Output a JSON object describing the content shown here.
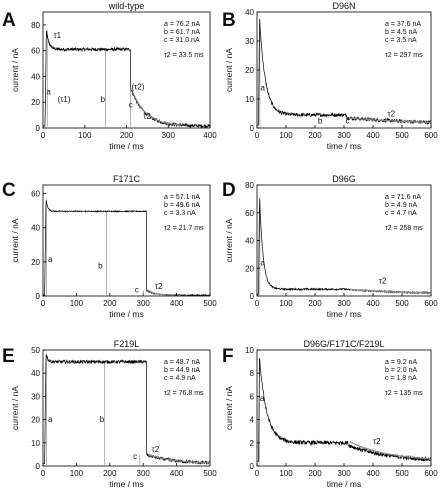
{
  "chart_data": [
    {
      "type": "line",
      "panel_label": "A",
      "title": "wild-type",
      "xlabel": "time / ms",
      "ylabel": "current / nA",
      "xlim": [
        0,
        400
      ],
      "ylim": [
        0,
        90
      ],
      "x_ticks": [
        0,
        100,
        200,
        300,
        400
      ],
      "y_ticks": [
        0,
        20,
        40,
        60,
        80
      ],
      "params": [
        "a = 76.2 nA",
        "b = 61.7 nA",
        "c = 31.0 nA",
        "τ2 = 33.5 ms"
      ],
      "markers": [
        {
          "text": "τ1",
          "x": 25,
          "y": 70
        },
        {
          "text": "(τ1)",
          "x": 35,
          "y": 20
        },
        {
          "text": "(τ2)",
          "x": 212,
          "y": 30
        },
        {
          "text": "τ2",
          "x": 240,
          "y": 7
        },
        {
          "text": "a",
          "x": 8,
          "y": 26
        },
        {
          "text": "b",
          "x": 138,
          "y": 20
        },
        {
          "text": "c",
          "x": 205,
          "y": 16
        }
      ],
      "guides": [
        {
          "x": 10,
          "y1": 1,
          "y2": 76
        },
        {
          "x": 150,
          "y1": 1,
          "y2": 61
        },
        {
          "x": 210,
          "y1": 1,
          "y2": 31
        }
      ],
      "trace": {
        "start": 5,
        "peak": 76,
        "peak_at": 8,
        "tau1": 6,
        "plateau": 61,
        "plateau_end": 210,
        "tail_start": 31,
        "tau2": 33,
        "baseline": 1.5,
        "end": 400,
        "noise": 2.5
      },
      "fit": {
        "x0": 215,
        "x1": 330,
        "y0": 28,
        "tau": 33,
        "baseline": 1.5
      }
    },
    {
      "type": "line",
      "panel_label": "B",
      "title": "D96N",
      "xlabel": "time / ms",
      "ylabel": "current / nA",
      "xlim": [
        0,
        600
      ],
      "ylim": [
        0,
        40
      ],
      "x_ticks": [
        0,
        100,
        200,
        300,
        400,
        500,
        600
      ],
      "y_ticks": [
        0,
        10,
        20,
        30,
        40
      ],
      "params": [
        "a = 37.6 nA",
        "b = 4.5 nA",
        "c = 3.5 nA",
        "τ2 = 297 ms"
      ],
      "markers": [
        {
          "text": "a",
          "x": 12,
          "y": 13
        },
        {
          "text": "b",
          "x": 210,
          "y": 1.5
        },
        {
          "text": "c",
          "x": 305,
          "y": 1.5
        },
        {
          "text": "τ2",
          "x": 450,
          "y": 4
        }
      ],
      "guides": [
        {
          "x": 10,
          "y1": 0.5,
          "y2": 37.6
        }
      ],
      "trace": {
        "start": 5,
        "peak": 37.6,
        "peak_at": 9,
        "tau1": 20,
        "plateau": 4.5,
        "plateau_end": 310,
        "tail_start": 3.5,
        "tau2": 297,
        "baseline": 1,
        "end": 600,
        "noise": 1.2
      },
      "fit": {
        "x0": 320,
        "x1": 600,
        "y0": 3.4,
        "tau": 297,
        "baseline": 1
      }
    },
    {
      "type": "line",
      "panel_label": "C",
      "title": "F171C",
      "xlabel": "time / ms",
      "ylabel": "current / nA",
      "xlim": [
        0,
        500
      ],
      "ylim": [
        0,
        65
      ],
      "x_ticks": [
        0,
        100,
        200,
        300,
        400,
        500
      ],
      "y_ticks": [
        0,
        20,
        40,
        60
      ],
      "params": [
        "a = 57.1 nA",
        "b = 49.6 nA",
        "c = 3.3 nA",
        "τ2 = 21.7 ms"
      ],
      "markers": [
        {
          "text": "a",
          "x": 15,
          "y": 20
        },
        {
          "text": "b",
          "x": 165,
          "y": 16
        },
        {
          "text": "c",
          "x": 275,
          "y": 2
        },
        {
          "text": "τ2",
          "x": 335,
          "y": 4
        }
      ],
      "guides": [
        {
          "x": 10,
          "y1": 0.5,
          "y2": 57
        },
        {
          "x": 190,
          "y1": 0.5,
          "y2": 49.6
        },
        {
          "x": 300,
          "y1": 0.5,
          "y2": 3.3
        }
      ],
      "trace": {
        "start": 5,
        "peak": 57.1,
        "peak_at": 9,
        "tau1": 5,
        "plateau": 49.6,
        "plateau_end": 310,
        "tail_start": 3.3,
        "tau2": 21.7,
        "baseline": 0.5,
        "end": 500,
        "noise": 0.6
      },
      "fit": {
        "x0": 315,
        "x1": 390,
        "y0": 3.3,
        "tau": 21.7,
        "baseline": 0.5
      }
    },
    {
      "type": "line",
      "panel_label": "D",
      "title": "D96G",
      "xlabel": "time / ms",
      "ylabel": "current / nA",
      "xlim": [
        0,
        600
      ],
      "ylim": [
        0,
        80
      ],
      "x_ticks": [
        0,
        100,
        200,
        300,
        400,
        500,
        600
      ],
      "y_ticks": [
        0,
        20,
        40,
        60,
        80
      ],
      "params": [
        "a = 71.6 nA",
        "b = 4.9 nA",
        "c = 4.7 nA",
        "τ2 = 258 ms"
      ],
      "markers": [
        {
          "text": "a",
          "x": 12,
          "y": 22
        },
        {
          "text": "τ2",
          "x": 420,
          "y": 9
        }
      ],
      "guides": [
        {
          "x": 10,
          "y1": 1,
          "y2": 71.6
        }
      ],
      "trace": {
        "start": 5,
        "peak": 71.6,
        "peak_at": 9,
        "tau1": 12,
        "plateau": 4.9,
        "plateau_end": 310,
        "tail_start": 4.7,
        "tau2": 258,
        "baseline": 1,
        "end": 600,
        "noise": 1.2
      },
      "fit": {
        "x0": 320,
        "x1": 600,
        "y0": 4.7,
        "tau": 258,
        "baseline": 1
      }
    },
    {
      "type": "line",
      "panel_label": "E",
      "title": "F219L",
      "xlabel": "time / ms",
      "ylabel": "current / nA",
      "xlim": [
        0,
        500
      ],
      "ylim": [
        0,
        50
      ],
      "x_ticks": [
        0,
        100,
        200,
        300,
        400,
        500
      ],
      "y_ticks": [
        0,
        10,
        20,
        30,
        40,
        50
      ],
      "params": [
        "a = 48.7 nA",
        "b = 44.9 nA",
        "c = 4.9 nA",
        "τ2 = 76.8 ms"
      ],
      "markers": [
        {
          "text": "a",
          "x": 15,
          "y": 19
        },
        {
          "text": "b",
          "x": 170,
          "y": 19
        },
        {
          "text": "c",
          "x": 270,
          "y": 3
        },
        {
          "text": "τ2",
          "x": 325,
          "y": 6
        }
      ],
      "guides": [
        {
          "x": 10,
          "y1": 0.5,
          "y2": 48.7
        },
        {
          "x": 185,
          "y1": 0.5,
          "y2": 44.9
        },
        {
          "x": 290,
          "y1": 0.5,
          "y2": 4.9
        }
      ],
      "trace": {
        "start": 5,
        "peak": 48.7,
        "peak_at": 9,
        "tau1": 5,
        "plateau": 44.9,
        "plateau_end": 310,
        "tail_start": 4.9,
        "tau2": 76.8,
        "baseline": 1,
        "end": 500,
        "noise": 1.4
      },
      "fit": {
        "x0": 315,
        "x1": 500,
        "y0": 4.9,
        "tau": 76.8,
        "baseline": 1
      }
    },
    {
      "type": "line",
      "panel_label": "F",
      "title": "D96G/F171C/F219L",
      "xlabel": "time / ms",
      "ylabel": "current / nA",
      "xlim": [
        0,
        600
      ],
      "ylim": [
        0,
        10
      ],
      "x_ticks": [
        0,
        100,
        200,
        300,
        400,
        500,
        600
      ],
      "y_ticks": [
        0,
        2,
        4,
        6,
        8,
        10
      ],
      "params": [
        "a = 9.2 nA",
        "b = 2.0 nA",
        "c = 1.8 nA",
        "τ2 = 135 ms"
      ],
      "markers": [
        {
          "text": "a",
          "x": 10,
          "y": 5.6
        },
        {
          "text": "τ2",
          "x": 400,
          "y": 1.9
        }
      ],
      "guides": [
        {
          "x": 8,
          "y1": 0.2,
          "y2": 9.2
        }
      ],
      "trace": {
        "start": 5,
        "peak": 9.2,
        "peak_at": 9,
        "tau1": 25,
        "plateau": 2.0,
        "plateau_end": 315,
        "tail_start": 1.8,
        "tau2": 135,
        "baseline": 0.4,
        "end": 600,
        "noise": 0.35
      },
      "fit": {
        "x0": 320,
        "x1": 600,
        "y0": 2.1,
        "tau": 135,
        "baseline": 0.4
      }
    }
  ]
}
